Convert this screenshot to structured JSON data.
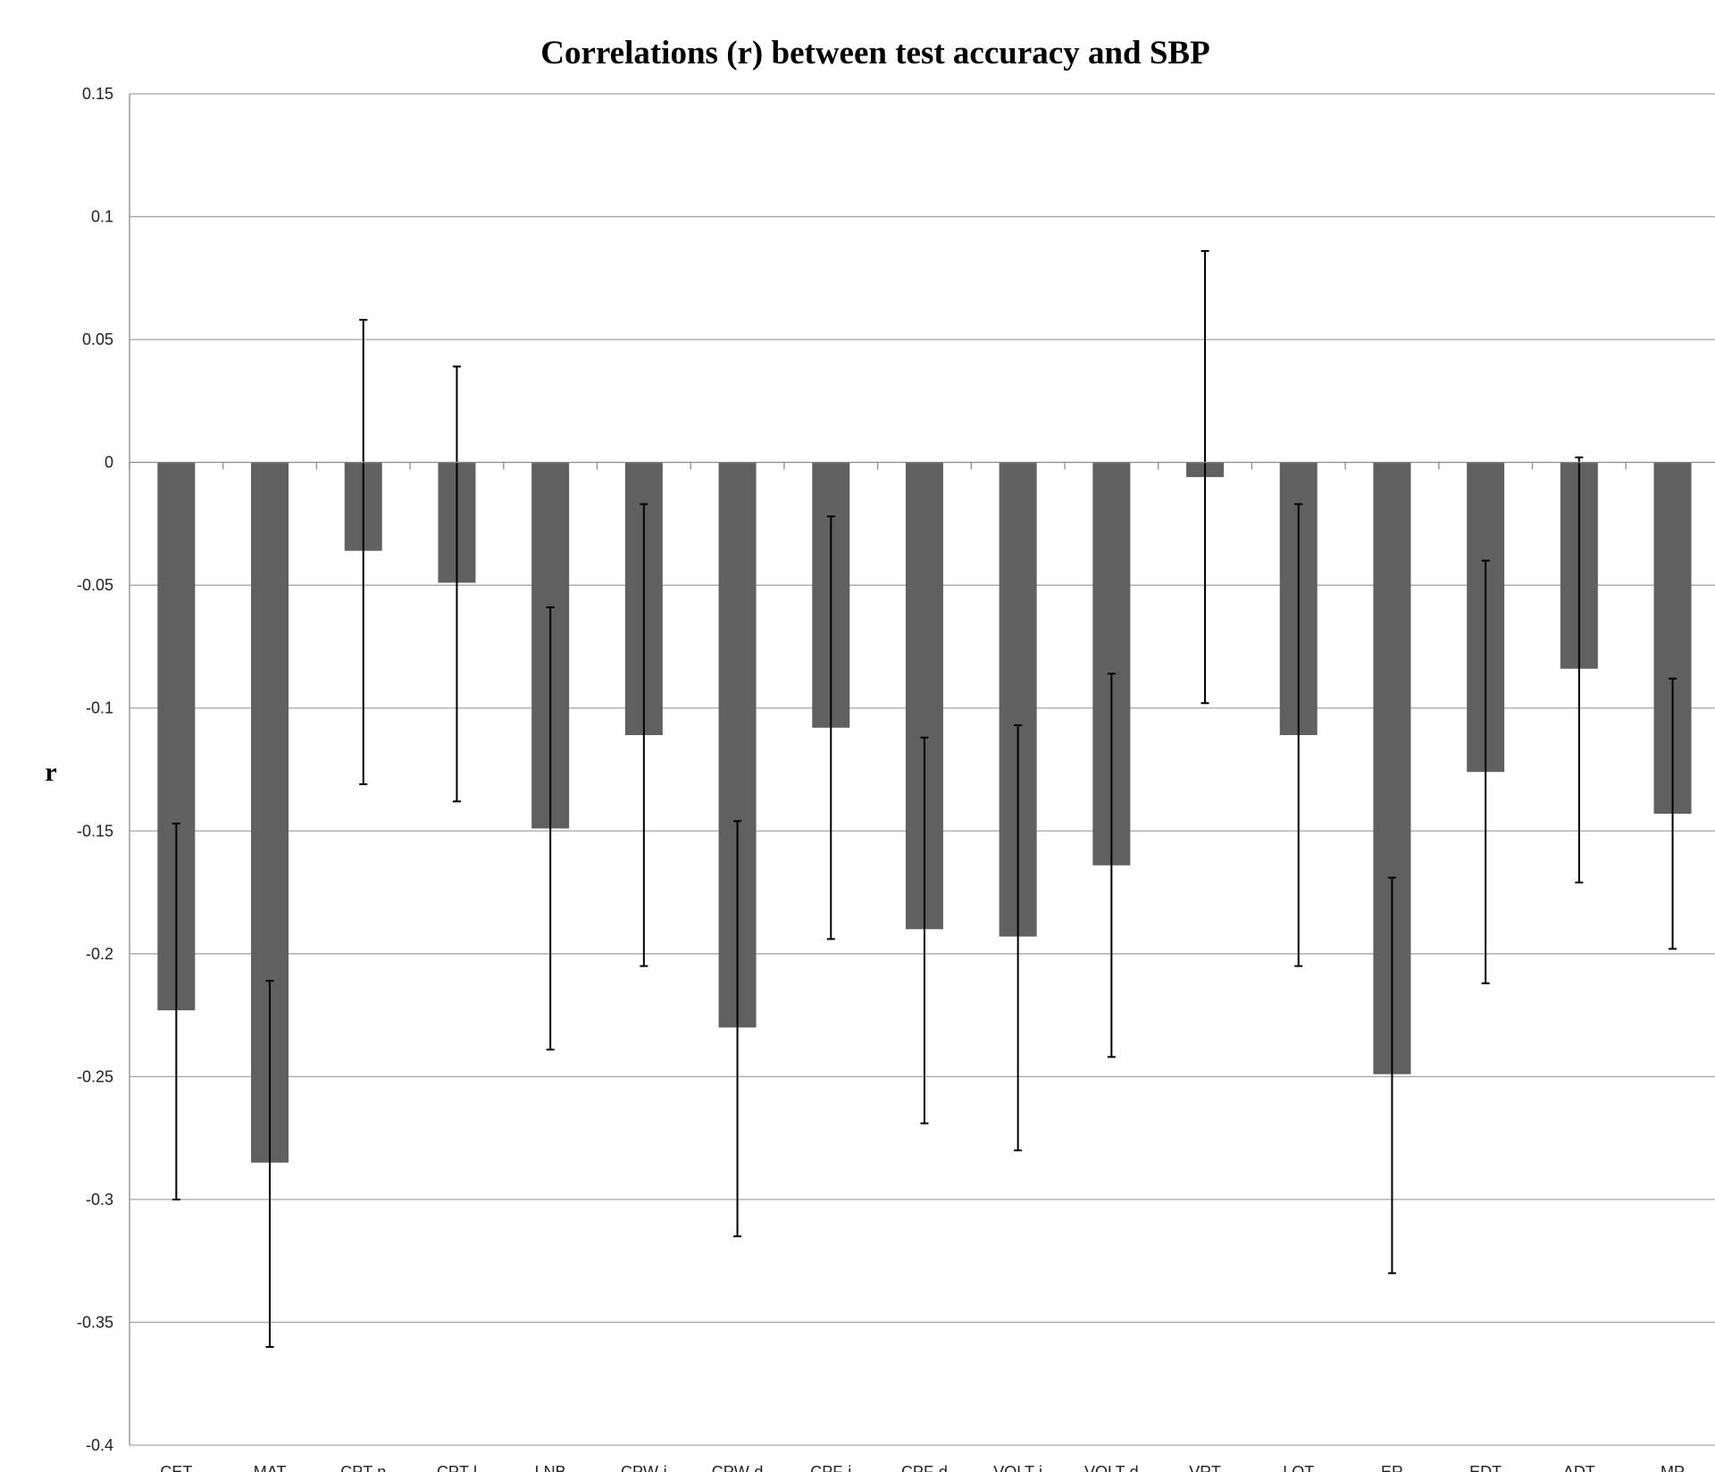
{
  "chart_data": {
    "type": "bar",
    "title": "Correlations (r) between test accuracy and SBP",
    "xlabel": "",
    "ylabel": "r",
    "ylim": [
      -0.4,
      0.15
    ],
    "y_ticks": [
      0.15,
      0.1,
      0.05,
      0,
      -0.05,
      -0.1,
      -0.15,
      -0.2,
      -0.25,
      -0.3,
      -0.35,
      -0.4
    ],
    "y_tick_labels": [
      "0.15",
      "0.1",
      "0.05",
      "0",
      "-0.05",
      "-0.1",
      "-0.15",
      "-0.2",
      "-0.25",
      "-0.3",
      "-0.35",
      "-0.4"
    ],
    "grid": true,
    "legend": "none",
    "bar_color": "#606060",
    "categories": [
      "CET",
      "MAT",
      "CPT-n",
      "CPT-l",
      "LNB",
      "CPW-i",
      "CPW-d",
      "CPF-i",
      "CPF-d",
      "VOLT-i",
      "VOLT-d",
      "VRT",
      "LOT",
      "ER",
      "EDT",
      "ADT",
      "MP"
    ],
    "values": [
      -0.223,
      -0.285,
      -0.036,
      -0.049,
      -0.149,
      -0.111,
      -0.23,
      -0.108,
      -0.19,
      -0.193,
      -0.164,
      -0.006,
      -0.111,
      -0.249,
      -0.126,
      -0.084,
      -0.143
    ],
    "error_low": [
      -0.3,
      -0.36,
      -0.131,
      -0.138,
      -0.239,
      -0.205,
      -0.315,
      -0.194,
      -0.269,
      -0.28,
      -0.242,
      -0.098,
      -0.205,
      -0.33,
      -0.212,
      -0.171,
      -0.198
    ],
    "error_high": [
      -0.147,
      -0.211,
      0.058,
      0.039,
      -0.059,
      -0.017,
      -0.146,
      -0.022,
      -0.112,
      -0.107,
      -0.086,
      0.086,
      -0.017,
      -0.169,
      -0.04,
      0.002,
      -0.088
    ]
  }
}
